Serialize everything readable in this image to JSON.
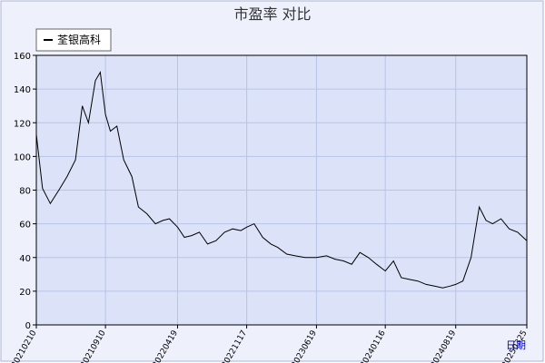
{
  "chart_data": {
    "type": "line",
    "title": "市盈率  对比",
    "xlabel": "日期",
    "ylabel": "",
    "ylim": [
      0,
      160
    ],
    "yticks": [
      0,
      20,
      40,
      60,
      80,
      100,
      120,
      140,
      160
    ],
    "x_tick_labels": [
      "20210210",
      "20210910",
      "20220419",
      "20221117",
      "20230619",
      "20240116",
      "20240819",
      "20250325"
    ],
    "grid": true,
    "legend_position": "top-left",
    "colors": {
      "series": "#000000",
      "plot_bg": "#dce3f8",
      "outer_bg": "#eef0fb",
      "axis_label": "#0000cc"
    },
    "series": [
      {
        "name": "荃银高科",
        "x": [
          "20210210",
          "20210301",
          "20210325",
          "20210420",
          "20210515",
          "20210610",
          "20210701",
          "20210720",
          "20210810",
          "20210825",
          "20210910",
          "20210925",
          "20211015",
          "20211105",
          "20211130",
          "20211220",
          "20220115",
          "20220210",
          "20220305",
          "20220325",
          "20220419",
          "20220510",
          "20220601",
          "20220625",
          "20220720",
          "20220815",
          "20220910",
          "20221005",
          "20221030",
          "20221117",
          "20221210",
          "20230105",
          "20230130",
          "20230220",
          "20230320",
          "20230415",
          "20230515",
          "20230619",
          "20230720",
          "20230815",
          "20230910",
          "20231005",
          "20231030",
          "20231125",
          "20231220",
          "20240116",
          "20240210",
          "20240305",
          "20240330",
          "20240425",
          "20240520",
          "20240615",
          "20240710",
          "20240801",
          "20240819",
          "20240910",
          "20241005",
          "20241030",
          "20241120",
          "20241210",
          "20250105",
          "20250130",
          "20250225",
          "20250325"
        ],
        "values": [
          113,
          81,
          72,
          80,
          88,
          98,
          130,
          120,
          145,
          150,
          125,
          115,
          118,
          98,
          88,
          70,
          66,
          60,
          62,
          63,
          58,
          52,
          53,
          55,
          48,
          50,
          55,
          57,
          56,
          58,
          60,
          52,
          48,
          46,
          42,
          41,
          40,
          40,
          41,
          39,
          38,
          36,
          43,
          40,
          36,
          32,
          38,
          28,
          27,
          26,
          24,
          23,
          22,
          23,
          24,
          26,
          40,
          70,
          62,
          60,
          63,
          57,
          55,
          50
        ]
      }
    ]
  }
}
